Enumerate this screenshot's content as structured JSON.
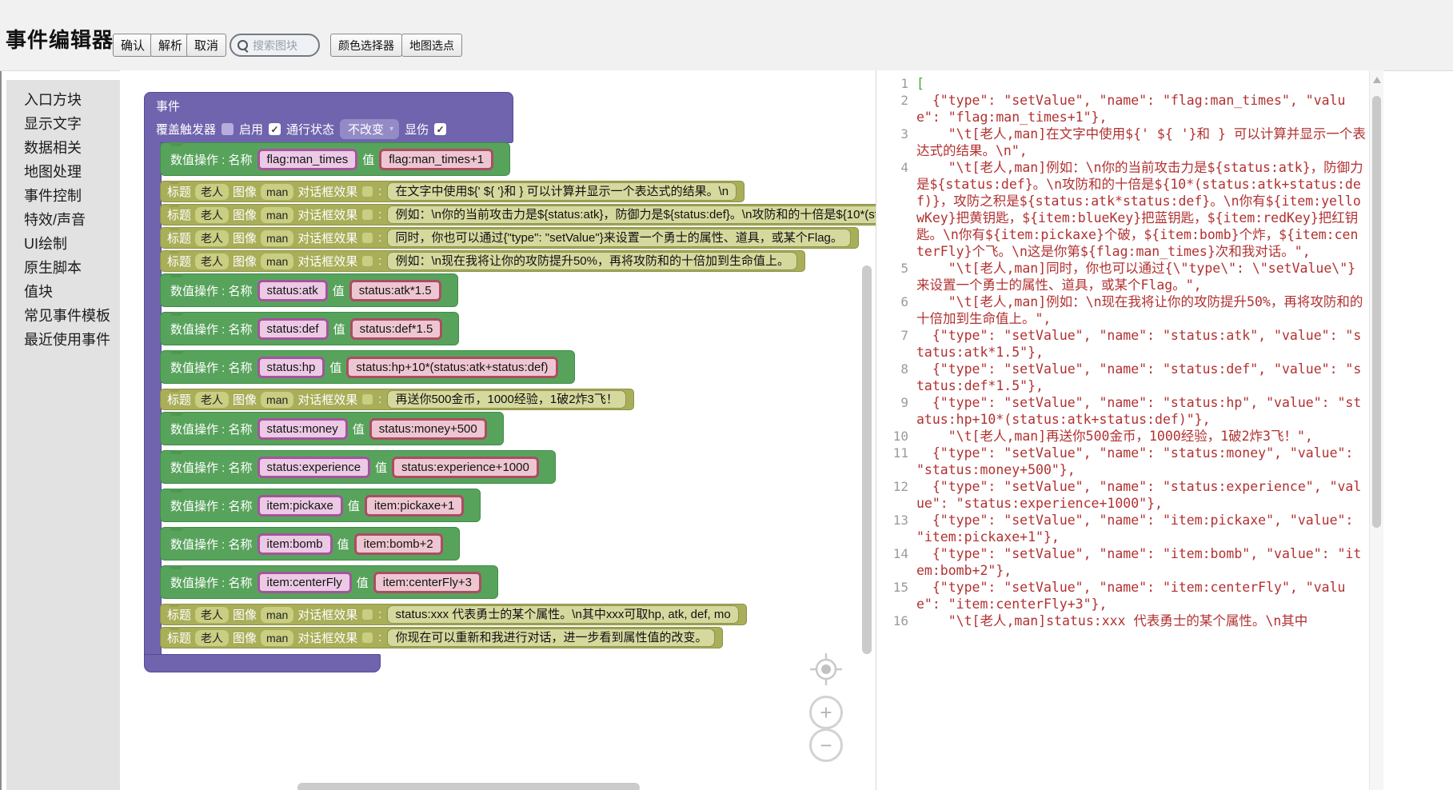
{
  "toolbar": {
    "title": "事件编辑器",
    "confirm": "确认",
    "parse": "解析",
    "cancel": "取消",
    "search_placeholder": "搜索图块",
    "color_picker": "颜色选择器",
    "map_pick": "地图选点"
  },
  "sidebar": {
    "items": [
      "入口方块",
      "显示文字",
      "数据相关",
      "地图处理",
      "事件控制",
      "特效/声音",
      "UI绘制",
      "原生脚本",
      "值块",
      "常见事件模板",
      "最近使用事件"
    ]
  },
  "workspace": {
    "event_block": {
      "title": "事件",
      "header_controls": {
        "override_label": "覆盖触发器",
        "override_checked": false,
        "enable_label": "启用",
        "enable_checked": true,
        "pass_label": "通行状态",
        "pass_value": "不改变",
        "damage_label": "显伤",
        "damage_checked": true
      },
      "labels": {
        "setvalue": "数值操作 : 名称",
        "value": "值",
        "title": "标题",
        "image": "图像",
        "effect": "对话框效果",
        "colon": ":"
      },
      "blocks": [
        {
          "kind": "setValue",
          "name": "flag:man_times",
          "value": "flag:man_times+1"
        },
        {
          "kind": "dialog",
          "speaker": "老人",
          "image": "man",
          "text": "在文字中使用${' ${ '}和 } 可以计算并显示一个表达式的结果。\\n"
        },
        {
          "kind": "dialog",
          "speaker": "老人",
          "image": "man",
          "text": "例如：\\n你的当前攻击力是${status:atk}，防御力是${status:def}。\\n攻防和的十倍是${10*(status:atk+status:def)}，攻防之积是${status:atk*status:def}。\\n你有${item:yellowKey}把黄钥匙，${item:blueKey}把蓝钥匙，${item:redKey}把红钥匙。\\n你有${item:pickaxe}个破，${item:bomb}个炸，${item:centerFly}个飞。\\n这是你第${flag:man_times}次和我对话。"
        },
        {
          "kind": "dialog",
          "speaker": "老人",
          "image": "man",
          "text": "同时，你也可以通过{\"type\": \"setValue\"}来设置一个勇士的属性、道具，或某个Flag。"
        },
        {
          "kind": "dialog",
          "speaker": "老人",
          "image": "man",
          "text": "例如：\\n现在我将让你的攻防提升50%，再将攻防和的十倍加到生命值上。"
        },
        {
          "kind": "setValue",
          "name": "status:atk",
          "value": "status:atk*1.5"
        },
        {
          "kind": "setValue",
          "name": "status:def",
          "value": "status:def*1.5"
        },
        {
          "kind": "setValue",
          "name": "status:hp",
          "value": "status:hp+10*(status:atk+status:def)"
        },
        {
          "kind": "dialog",
          "speaker": "老人",
          "image": "man",
          "text": "再送你500金币，1000经验，1破2炸3飞！"
        },
        {
          "kind": "setValue",
          "name": "status:money",
          "value": "status:money+500"
        },
        {
          "kind": "setValue",
          "name": "status:experience",
          "value": "status:experience+1000"
        },
        {
          "kind": "setValue",
          "name": "item:pickaxe",
          "value": "item:pickaxe+1"
        },
        {
          "kind": "setValue",
          "name": "item:bomb",
          "value": "item:bomb+2"
        },
        {
          "kind": "setValue",
          "name": "item:centerFly",
          "value": "item:centerFly+3"
        },
        {
          "kind": "dialog",
          "speaker": "老人",
          "image": "man",
          "text": "status:xxx 代表勇士的某个属性。\\n其中xxx可取hp, atk, def, mo"
        },
        {
          "kind": "dialog",
          "speaker": "老人",
          "image": "man",
          "text": "你现在可以重新和我进行对话，进一步看到属性值的改变。"
        }
      ]
    },
    "glyphs": {
      "check": "✓",
      "caret": "▾",
      "zoom_in": "+",
      "zoom_out": "−"
    }
  },
  "code_panel": {
    "lines": [
      {
        "n": 1,
        "t": "[",
        "hl": "bracket"
      },
      {
        "n": 2,
        "t": "  {\"type\": \"setValue\", \"name\": \"flag:man_times\", \"value\": \"flag:man_times+1\"},"
      },
      {
        "n": 3,
        "t": "    \"\\t[老人,man]在文字中使用${' ${ '}和 } 可以计算并显示一个表达式的结果。\\n\","
      },
      {
        "n": 4,
        "t": "    \"\\t[老人,man]例如：\\n你的当前攻击力是${status:atk}，防御力是${status:def}。\\n攻防和的十倍是${10*(status:atk+status:def)}，攻防之积是${status:atk*status:def}。\\n你有${item:yellowKey}把黄钥匙，${item:blueKey}把蓝钥匙，${item:redKey}把红钥匙。\\n你有${item:pickaxe}个破，${item:bomb}个炸，${item:centerFly}个飞。\\n这是你第${flag:man_times}次和我对话。\","
      },
      {
        "n": 5,
        "t": "    \"\\t[老人,man]同时，你也可以通过{\\\"type\\\": \\\"setValue\\\"}来设置一个勇士的属性、道具，或某个Flag。\","
      },
      {
        "n": 6,
        "t": "    \"\\t[老人,man]例如：\\n现在我将让你的攻防提升50%，再将攻防和的十倍加到生命值上。\","
      },
      {
        "n": 7,
        "t": "  {\"type\": \"setValue\", \"name\": \"status:atk\", \"value\": \"status:atk*1.5\"},"
      },
      {
        "n": 8,
        "t": "  {\"type\": \"setValue\", \"name\": \"status:def\", \"value\": \"status:def*1.5\"},"
      },
      {
        "n": 9,
        "t": "  {\"type\": \"setValue\", \"name\": \"status:hp\", \"value\": \"status:hp+10*(status:atk+status:def)\"},"
      },
      {
        "n": 10,
        "t": "    \"\\t[老人,man]再送你500金币，1000经验，1破2炸3飞！\","
      },
      {
        "n": 11,
        "t": "  {\"type\": \"setValue\", \"name\": \"status:money\", \"value\": \"status:money+500\"},"
      },
      {
        "n": 12,
        "t": "  {\"type\": \"setValue\", \"name\": \"status:experience\", \"value\": \"status:experience+1000\"},"
      },
      {
        "n": 13,
        "t": "  {\"type\": \"setValue\", \"name\": \"item:pickaxe\", \"value\": \"item:pickaxe+1\"},"
      },
      {
        "n": 14,
        "t": "  {\"type\": \"setValue\", \"name\": \"item:bomb\", \"value\": \"item:bomb+2\"},"
      },
      {
        "n": 15,
        "t": "  {\"type\": \"setValue\", \"name\": \"item:centerFly\", \"value\": \"item:centerFly+3\"},"
      },
      {
        "n": 16,
        "t": "    \"\\t[老人,man]status:xxx 代表勇士的某个属性。\\n其中"
      }
    ]
  }
}
